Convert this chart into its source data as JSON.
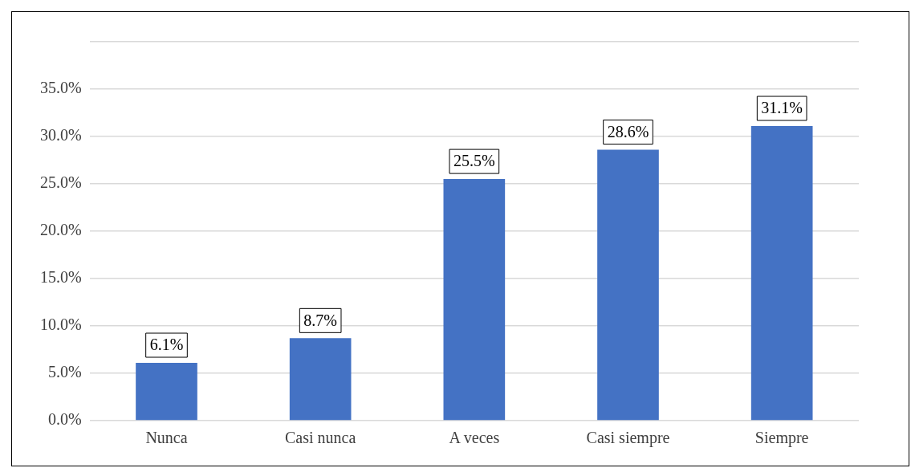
{
  "chart_data": {
    "type": "bar",
    "categories": [
      "Nunca",
      "Casi nunca",
      "A veces",
      "Casi siempre",
      "Siempre"
    ],
    "values": [
      6.1,
      8.7,
      25.5,
      28.6,
      31.1
    ],
    "value_labels": [
      "6.1%",
      "8.7%",
      "25.5%",
      "28.6%",
      "31.1%"
    ],
    "color": "#4472c4",
    "ylim": [
      0,
      40
    ],
    "yticks": [
      {
        "value": 0,
        "label": "0.0%"
      },
      {
        "value": 5,
        "label": "5.0%"
      },
      {
        "value": 10,
        "label": "10.0%"
      },
      {
        "value": 15,
        "label": "15.0%"
      },
      {
        "value": 20,
        "label": "20.0%"
      },
      {
        "value": 25,
        "label": "25.0%"
      },
      {
        "value": 30,
        "label": "30.0%"
      },
      {
        "value": 35,
        "label": "35.0%"
      },
      {
        "value": 40,
        "label": null
      }
    ],
    "grid": "y",
    "legend": false
  }
}
